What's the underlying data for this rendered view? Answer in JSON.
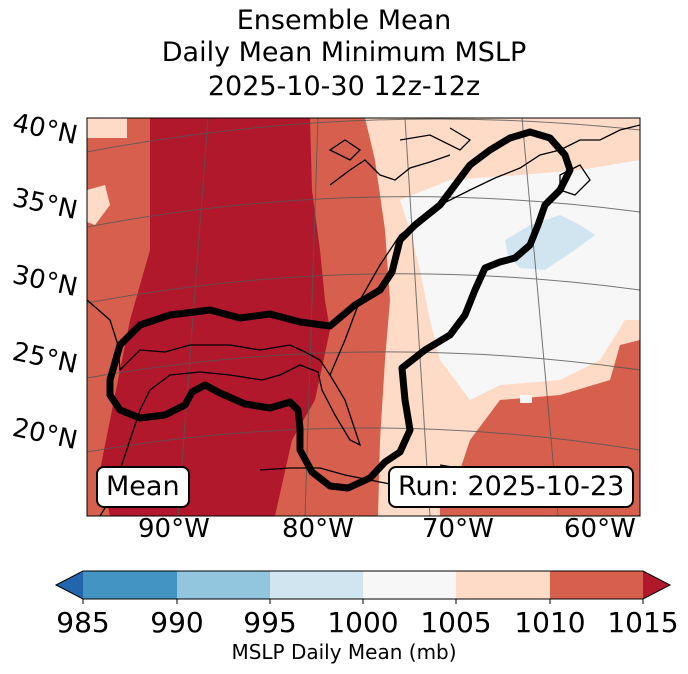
{
  "title": {
    "line1": "Ensemble Mean",
    "line2": "Daily Mean Minimum MSLP",
    "line3": "2025-10-30 12z-12z"
  },
  "map": {
    "lat_labels": [
      "40°N",
      "35°N",
      "30°N",
      "25°N",
      "20°N"
    ],
    "lon_labels": [
      "90°W",
      "80°W",
      "70°W",
      "60°W"
    ],
    "mean_box": "Mean",
    "run_box": "Run: 2025-10-23",
    "colors": {
      "c985": "#2166ac",
      "c990": "#4393c3",
      "c995": "#92c5de",
      "c1000": "#d1e5f0",
      "c1005": "#f7f7f7",
      "c1010": "#fddbc7",
      "c1015": "#d6604d",
      "cmax": "#b2182b"
    }
  },
  "colorbar": {
    "ticks": [
      "985",
      "990",
      "995",
      "1000",
      "1005",
      "1010",
      "1015"
    ],
    "label": "MSLP Daily Mean (mb)"
  }
}
